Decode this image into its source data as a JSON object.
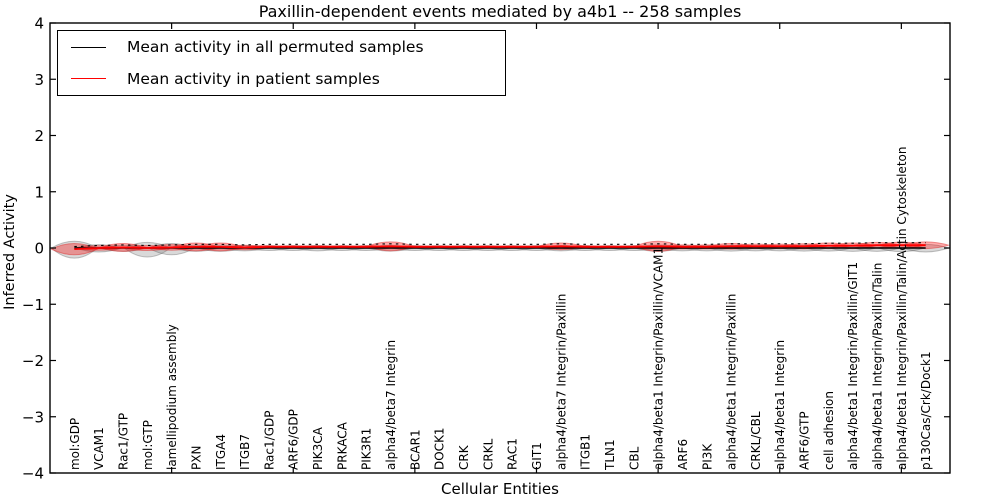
{
  "title": "Paxillin-dependent events mediated by a4b1 -- 258 samples",
  "xlabel": "Cellular Entities",
  "ylabel": "Inferred Activity",
  "legend": {
    "entries": [
      {
        "label": "Mean activity in all permuted samples",
        "color": "#000000"
      },
      {
        "label": "Mean activity in patient samples",
        "color": "#ff0000"
      }
    ]
  },
  "colors": {
    "patient_line": "#ff0000",
    "permuted_line": "#000000",
    "patient_fill": "#ff0000",
    "permuted_fill": "#787878",
    "axis": "#000000"
  },
  "chart_data": {
    "type": "violin",
    "title": "Paxillin-dependent events mediated by a4b1 -- 258 samples",
    "xlabel": "Cellular Entities",
    "ylabel": "Inferred Activity",
    "ylim": [
      -4,
      4
    ],
    "yticks": [
      4,
      3,
      2,
      1,
      0,
      -1,
      -2,
      -3,
      -4
    ],
    "xlim": [
      0,
      37
    ],
    "xticks": [
      5,
      10,
      15,
      20,
      25,
      30,
      35
    ],
    "grid": false,
    "legend_position": "upper left",
    "categories": [
      "mol:GDP",
      "VCAM1",
      "Rac1/GTP",
      "mol:GTP",
      "lamellipodium assembly",
      "PXN",
      "ITGA4",
      "ITGB7",
      "Rac1/GDP",
      "ARF6/GDP",
      "PIK3CA",
      "PRKACA",
      "PIK3R1",
      "alpha4/beta7 Integrin",
      "BCAR1",
      "DOCK1",
      "CRK",
      "CRKL",
      "RAC1",
      "GIT1",
      "alpha4/beta7 Integrin/Paxillin",
      "ITGB1",
      "TLN1",
      "CBL",
      "alpha4/beta1 Integrin/Paxillin/VCAM1",
      "ARF6",
      "PI3K",
      "alpha4/beta1 Integrin/Paxillin",
      "CRKL/CBL",
      "alpha4/beta1 Integrin",
      "ARF6/GTP",
      "cell adhesion",
      "alpha4/beta1 Integrin/Paxillin/GIT1",
      "alpha4/beta1 Integrin/Paxillin/Talin",
      "alpha4/beta1 Integrin/Paxillin/Talin/Actin Cytoskeleton",
      "p130Cas/Crk/Dock1"
    ],
    "series": [
      {
        "name": "Mean activity in all permuted samples",
        "kind": "line",
        "color": "#000000",
        "values": [
          0,
          0,
          0,
          0,
          0,
          0,
          0,
          0,
          0,
          0,
          0,
          0,
          0,
          0,
          0,
          0,
          0,
          0,
          0,
          0,
          0,
          0,
          0,
          0,
          0,
          0,
          0,
          0,
          0,
          0,
          0,
          0,
          0,
          0,
          0,
          0
        ]
      },
      {
        "name": "Mean activity in patient samples",
        "kind": "line",
        "color": "#ff0000",
        "values": [
          -0.02,
          0,
          0.01,
          0,
          0.01,
          0.02,
          0.02,
          0.01,
          0.02,
          0.02,
          0.02,
          0.02,
          0.02,
          0.03,
          0.02,
          0.02,
          0.02,
          0.02,
          0.02,
          0.02,
          0.03,
          0.02,
          0.02,
          0.02,
          0.03,
          0.02,
          0.02,
          0.03,
          0.03,
          0.03,
          0.03,
          0.04,
          0.04,
          0.05,
          0.05,
          0.05
        ]
      },
      {
        "name": "Permuted sample activity spread",
        "kind": "violin",
        "color": "#787878",
        "opacity": 0.28,
        "half_up": [
          0.12,
          0.06,
          0.05,
          0.1,
          0.08,
          0.05,
          0.05,
          0.045,
          0.04,
          0.04,
          0.045,
          0.04,
          0.04,
          0.05,
          0.04,
          0.04,
          0.04,
          0.04,
          0.04,
          0.04,
          0.045,
          0.04,
          0.04,
          0.04,
          0.055,
          0.045,
          0.045,
          0.05,
          0.045,
          0.045,
          0.05,
          0.05,
          0.055,
          0.055,
          0.06,
          0.065
        ],
        "half_down": [
          0.18,
          0.07,
          0.06,
          0.16,
          0.12,
          0.06,
          0.06,
          0.05,
          0.045,
          0.045,
          0.05,
          0.045,
          0.045,
          0.055,
          0.045,
          0.045,
          0.045,
          0.045,
          0.045,
          0.045,
          0.05,
          0.045,
          0.045,
          0.045,
          0.06,
          0.05,
          0.05,
          0.055,
          0.05,
          0.05,
          0.055,
          0.055,
          0.06,
          0.06,
          0.065,
          0.07
        ]
      },
      {
        "name": "Patient sample activity spread",
        "kind": "violin",
        "color": "#ff0000",
        "opacity": 0.32,
        "half_up": [
          0.1,
          0.04,
          0.07,
          0.045,
          0.05,
          0.07,
          0.07,
          0.04,
          0.025,
          0.025,
          0.025,
          0.025,
          0.025,
          0.08,
          0.022,
          0.022,
          0.022,
          0.022,
          0.022,
          0.022,
          0.06,
          0.025,
          0.022,
          0.022,
          0.09,
          0.035,
          0.035,
          0.05,
          0.04,
          0.04,
          0.045,
          0.05,
          0.05,
          0.05,
          0.055,
          0.06
        ],
        "half_down": [
          0.1,
          0.04,
          0.07,
          0.045,
          0.05,
          0.07,
          0.07,
          0.04,
          0.025,
          0.025,
          0.025,
          0.025,
          0.025,
          0.08,
          0.022,
          0.022,
          0.022,
          0.022,
          0.022,
          0.022,
          0.06,
          0.025,
          0.022,
          0.022,
          0.09,
          0.035,
          0.035,
          0.05,
          0.04,
          0.04,
          0.045,
          0.05,
          0.05,
          0.05,
          0.055,
          0.06
        ]
      }
    ],
    "dashed_reference_offset": 0.045
  }
}
